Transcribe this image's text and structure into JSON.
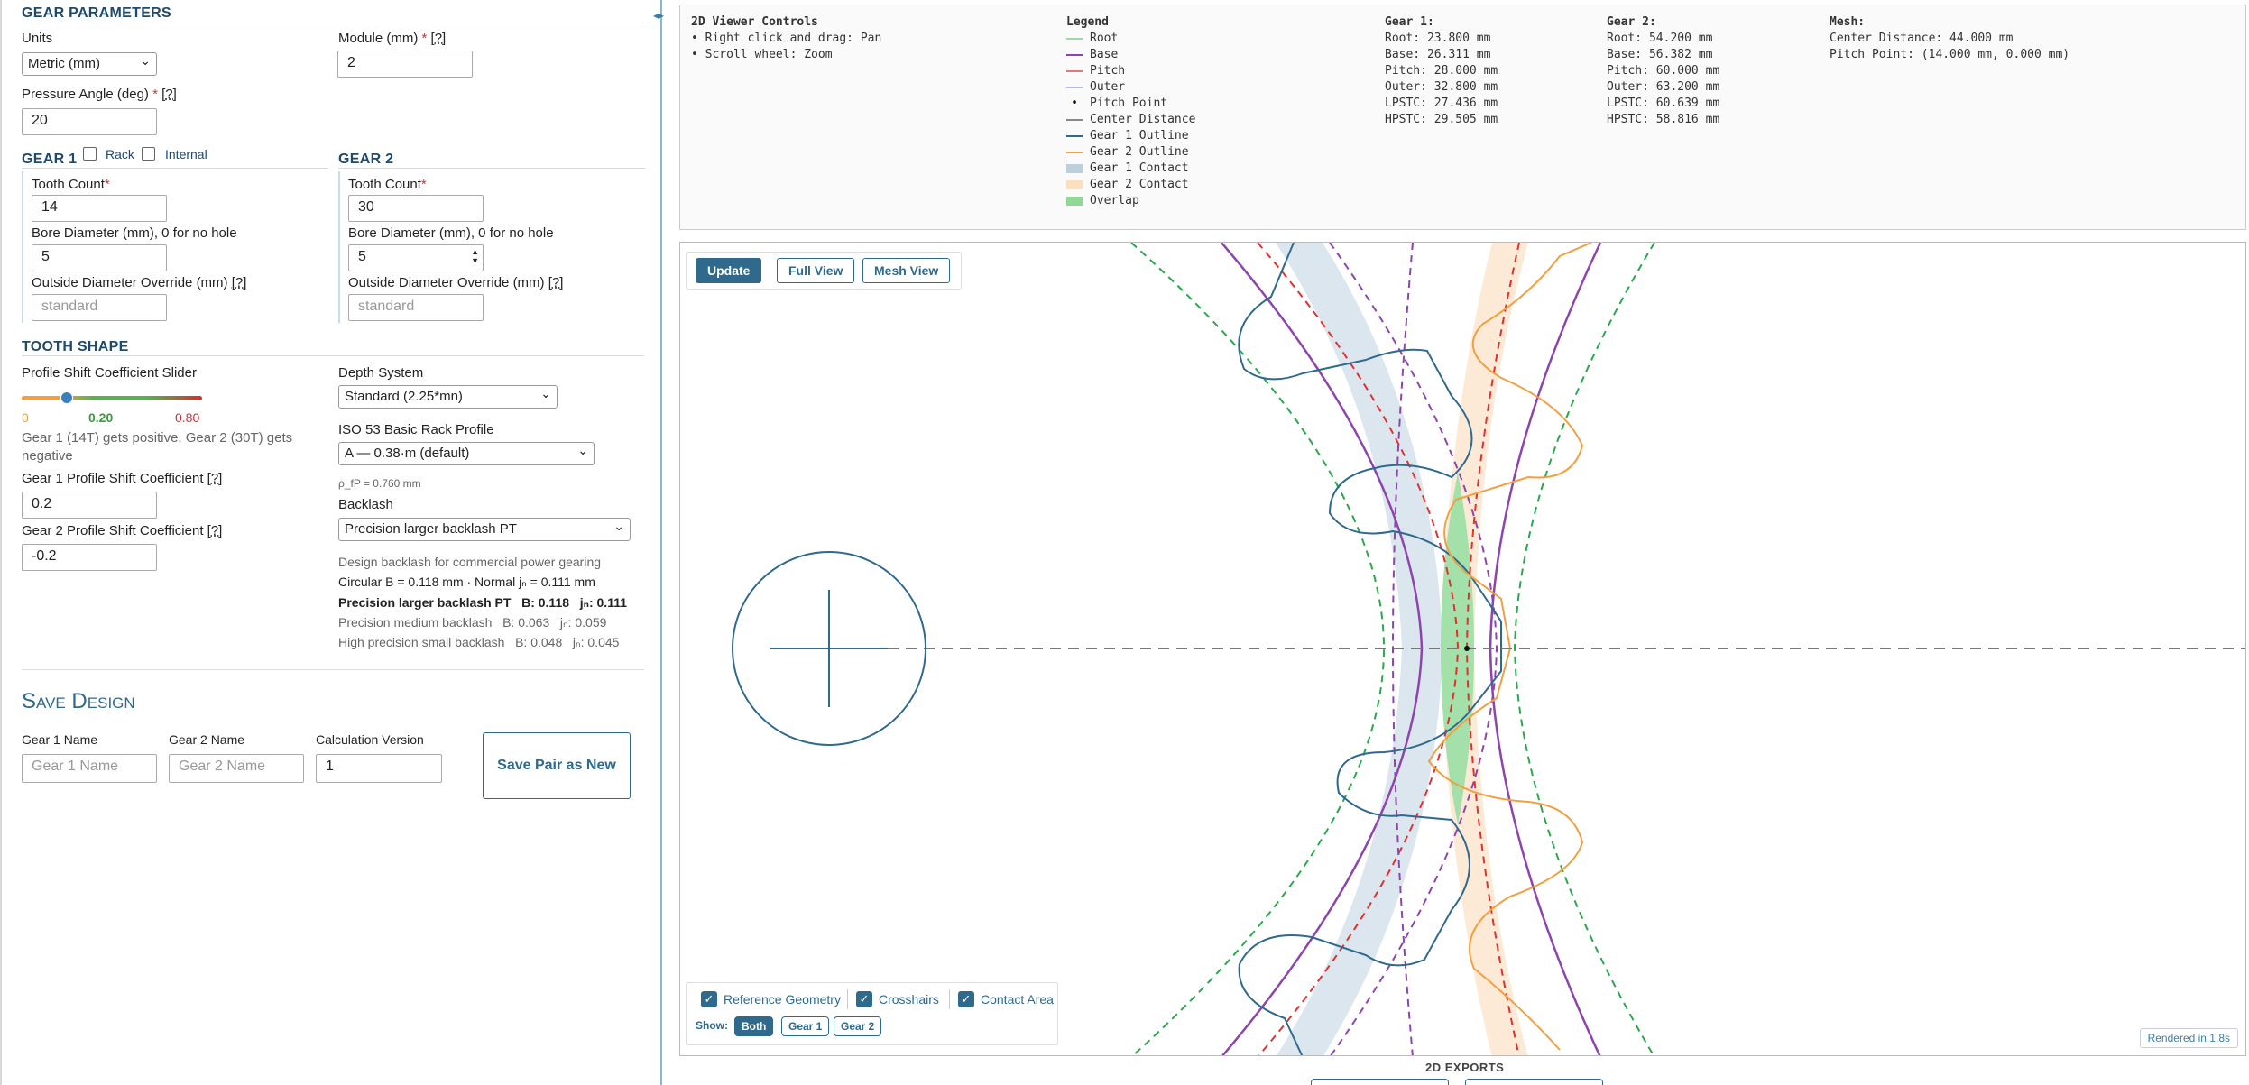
{
  "gear_params": {
    "title": "GEAR PARAMETERS",
    "units_label": "Units",
    "units_value": "Metric (mm)",
    "module_label": "Module (mm)",
    "module_value": "2",
    "pressure_label": "Pressure Angle (deg)",
    "pressure_value": "20",
    "help": "[?]",
    "required": "*"
  },
  "gear1": {
    "title": "GEAR 1",
    "rack_label": "Rack",
    "internal_label": "Internal",
    "tooth_label": "Tooth Count",
    "tooth_value": "14",
    "bore_label": "Bore Diameter (mm), 0 for no hole",
    "bore_value": "5",
    "od_label": "Outside Diameter Override (mm)",
    "od_placeholder": "standard"
  },
  "gear2": {
    "title": "GEAR 2",
    "tooth_label": "Tooth Count",
    "tooth_value": "30",
    "bore_label": "Bore Diameter (mm), 0 for no hole",
    "bore_value": "5",
    "od_label": "Outside Diameter Override (mm)",
    "od_placeholder": "standard"
  },
  "tooth_shape": {
    "title": "TOOTH SHAPE",
    "slider_label": "Profile Shift Coefficient Slider",
    "slider_min": "0",
    "slider_value": "0.20",
    "slider_max": "0.80",
    "slider_fraction": 0.25,
    "slider_note": "Gear 1 (14T) gets positive, Gear 2 (30T) gets negative",
    "g1_shift_label": "Gear 1 Profile Shift Coefficient",
    "g1_shift_value": "0.2",
    "g2_shift_label": "Gear 2 Profile Shift Coefficient",
    "g2_shift_value": "-0.2",
    "depth_label": "Depth System",
    "depth_value": "Standard (2.25*mn)",
    "rack_label": "ISO 53 Basic Rack Profile",
    "rack_value": "A — 0.38·m (default)",
    "rho_note": "ρ_fP = 0.760 mm",
    "backlash_label": "Backlash",
    "backlash_value": "Precision larger backlash PT",
    "backlash_desc": "Design backlash for commercial power gearing",
    "backlash_calc": "Circular B = 0.118 mm · Normal jₙ = 0.111 mm",
    "backlash_rows": [
      {
        "name": "Precision larger backlash PT",
        "b": "B: 0.118",
        "jn": "jₙ: 0.111"
      },
      {
        "name": "Precision medium backlash",
        "b": "B: 0.063",
        "jn": "jₙ: 0.059"
      },
      {
        "name": "High precision small backlash",
        "b": "B: 0.048",
        "jn": "jₙ: 0.045"
      }
    ]
  },
  "save": {
    "title": "Save Design",
    "g1_name_label": "Gear 1 Name",
    "g1_name_placeholder": "Gear 1 Name",
    "g2_name_label": "Gear 2 Name",
    "g2_name_placeholder": "Gear 2 Name",
    "calc_label": "Calculation Version",
    "calc_value": "1",
    "save_button": "Save Pair as New"
  },
  "info": {
    "controls_title": "2D Viewer Controls",
    "controls": [
      "• Right click and drag: Pan",
      "• Scroll wheel: Zoom"
    ],
    "legend_title": "Legend",
    "legend": [
      {
        "label": "Root",
        "color": "#9fd6a9",
        "kind": "line"
      },
      {
        "label": "Base",
        "color": "#8e44ad",
        "kind": "line"
      },
      {
        "label": "Pitch",
        "color": "#e07a7a",
        "kind": "line"
      },
      {
        "label": "Outer",
        "color": "#b8b8e0",
        "kind": "line"
      },
      {
        "label": "Pitch Point",
        "color": "#111111",
        "kind": "dot"
      },
      {
        "label": "Center Distance",
        "color": "#888888",
        "kind": "line"
      },
      {
        "label": "Gear 1 Outline",
        "color": "#2f6a8c",
        "kind": "line"
      },
      {
        "label": "Gear 2 Outline",
        "color": "#f0a040",
        "kind": "line"
      },
      {
        "label": "Gear 1 Contact",
        "color": "#bcd0dc",
        "kind": "block"
      },
      {
        "label": "Gear 2 Contact",
        "color": "#fbe0c0",
        "kind": "block"
      },
      {
        "label": "Overlap",
        "color": "#90d898",
        "kind": "block"
      }
    ],
    "gear1_title": "Gear 1:",
    "gear1": [
      "Root: 23.800 mm",
      "Base: 26.311 mm",
      "Pitch: 28.000 mm",
      "Outer: 32.800 mm",
      "LPSTC: 27.436 mm",
      "HPSTC: 29.505 mm"
    ],
    "gear2_title": "Gear 2:",
    "gear2": [
      "Root: 54.200 mm",
      "Base: 56.382 mm",
      "Pitch: 60.000 mm",
      "Outer: 63.200 mm",
      "LPSTC: 60.639 mm",
      "HPSTC: 58.816 mm"
    ],
    "mesh_title": "Mesh:",
    "mesh": [
      "Center Distance: 44.000 mm",
      "Pitch Point: (14.000 mm, 0.000 mm)"
    ]
  },
  "viewer": {
    "update": "Update",
    "full_view": "Full View",
    "mesh_view": "Mesh View",
    "ref_geom": "Reference Geometry",
    "crosshairs": "Crosshairs",
    "contact_area": "Contact Area",
    "show_label": "Show:",
    "show_both": "Both",
    "show_g1": "Gear 1",
    "show_g2": "Gear 2",
    "rendered": "Rendered in 1.8s"
  },
  "exports": {
    "title": "2D EXPORTS"
  },
  "colors": {
    "accent": "#2f6a8c",
    "gear1": "#2f6a8c",
    "gear2": "#f0a040",
    "base": "#8e44ad",
    "pitch": "#e03030",
    "outer": "#2aa84a",
    "overlap": "#90d898"
  }
}
